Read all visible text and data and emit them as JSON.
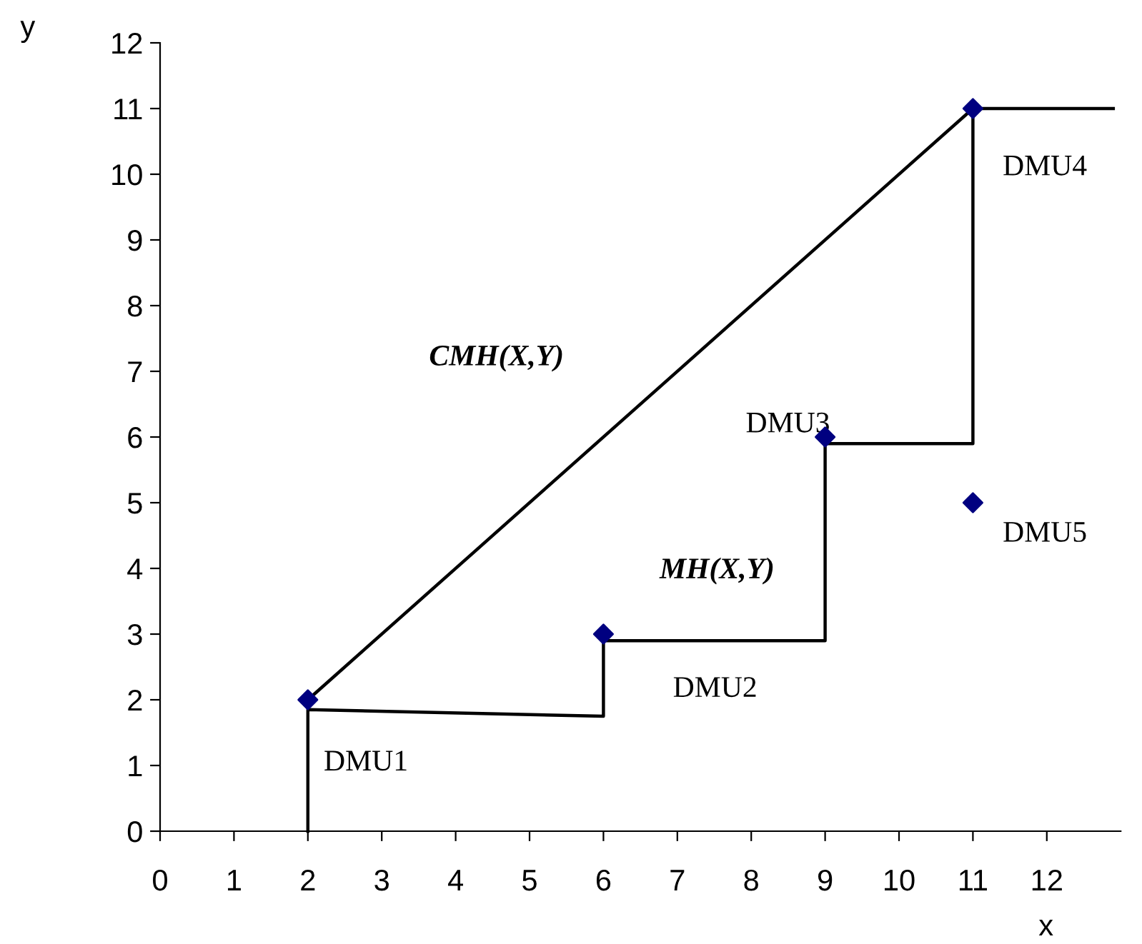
{
  "chart_data": {
    "type": "scatter",
    "xlabel": "x",
    "ylabel": "y",
    "xlim": [
      0,
      13
    ],
    "ylim": [
      0,
      12
    ],
    "xticks": [
      0,
      1,
      2,
      3,
      4,
      5,
      6,
      7,
      8,
      9,
      10,
      11,
      12
    ],
    "yticks": [
      0,
      1,
      2,
      3,
      4,
      5,
      6,
      7,
      8,
      9,
      10,
      11,
      12
    ],
    "grid": false,
    "legend": false,
    "series": [
      {
        "type": "line",
        "color": "#000000",
        "marker": "none",
        "line_style": "solid",
        "x": [
          2,
          11,
          12.9
        ],
        "values": [
          2,
          11,
          11
        ]
      },
      {
        "type": "line",
        "color": "#000000",
        "marker": "none",
        "line_style": "solid",
        "x": [
          2,
          2,
          6,
          6,
          9,
          9,
          11,
          11
        ],
        "values": [
          0,
          1.85,
          1.75,
          2.9,
          2.9,
          5.9,
          5.9,
          11
        ]
      },
      {
        "color": "#000080",
        "marker": "diamond",
        "x": [
          2,
          6,
          9,
          11,
          11
        ],
        "values": [
          2,
          3,
          6,
          11,
          5
        ]
      }
    ],
    "annotations": [
      {
        "text": "DMU1",
        "x": 2,
        "y": 2
      },
      {
        "text": "DMU2",
        "x": 6,
        "y": 3
      },
      {
        "text": "DMU3",
        "x": 9,
        "y": 6
      },
      {
        "text": "DMU4",
        "x": 11,
        "y": 11
      },
      {
        "text": "DMU5",
        "x": 11,
        "y": 5
      },
      "CMH(X,Y)",
      "MH(X,Y)"
    ]
  }
}
